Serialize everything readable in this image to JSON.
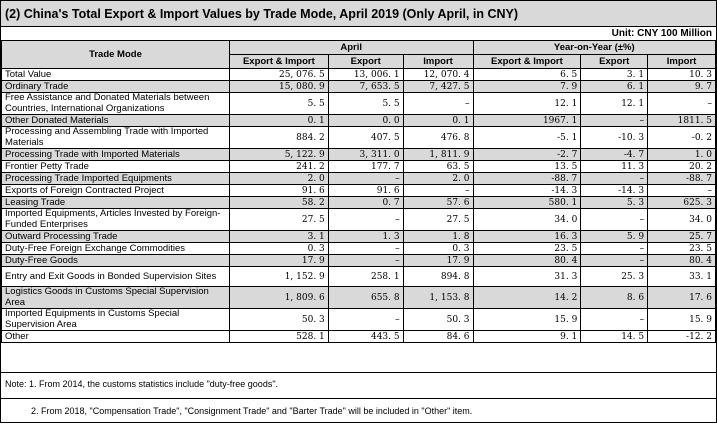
{
  "title": "(2) China's Total Export & Import Values by Trade Mode, April 2019 (Only April, in CNY)",
  "unit": "Unit: CNY 100 Million",
  "headers": {
    "trade_mode": "Trade Mode",
    "april": "April",
    "yoy": "Year-on-Year (±%)",
    "export_import": "Export & Import",
    "export": "Export",
    "import": "Import"
  },
  "rows": [
    {
      "name": "Total Value",
      "ei": "25, 076. 5",
      "ex": "13, 006. 1",
      "im": "12, 070. 4",
      "yei": "6. 5",
      "yex": "3. 1",
      "yim": "10. 3"
    },
    {
      "name": "Ordinary Trade",
      "ei": "15, 080. 9",
      "ex": "7, 653. 5",
      "im": "7, 427. 5",
      "yei": "7. 9",
      "yex": "6. 1",
      "yim": "9. 7"
    },
    {
      "name": "Free Assistance and Donated Materials between Countries, International Organizations",
      "ei": "5. 5",
      "ex": "5. 5",
      "im": "–",
      "yei": "12. 1",
      "yex": "12. 1",
      "yim": "–"
    },
    {
      "name": "Other Donated Materials",
      "ei": "0. 1",
      "ex": "0. 0",
      "im": "0. 1",
      "yei": "1967. 1",
      "yex": "–",
      "yim": "1811. 5"
    },
    {
      "name": "Processing and Assembling Trade with Imported Materials",
      "ei": "884. 2",
      "ex": "407. 5",
      "im": "476. 8",
      "yei": "-5. 1",
      "yex": "-10. 3",
      "yim": "-0. 2"
    },
    {
      "name": "Processing Trade with Imported Materials",
      "ei": "5, 122. 9",
      "ex": "3, 311. 0",
      "im": "1, 811. 9",
      "yei": "-2. 7",
      "yex": "-4. 7",
      "yim": "1. 0"
    },
    {
      "name": "Frontier Petty Trade",
      "ei": "241. 2",
      "ex": "177. 7",
      "im": "63. 5",
      "yei": "13. 5",
      "yex": "11. 3",
      "yim": "20. 2"
    },
    {
      "name": "Processing Trade Imported Equipments",
      "ei": "2. 0",
      "ex": "–",
      "im": "2. 0",
      "yei": "-88. 7",
      "yex": "–",
      "yim": "-88. 7"
    },
    {
      "name": "Exports of Foreign Contracted Project",
      "ei": "91. 6",
      "ex": "91. 6",
      "im": "–",
      "yei": "-14. 3",
      "yex": "-14. 3",
      "yim": "–"
    },
    {
      "name": "Leasing Trade",
      "ei": "58. 2",
      "ex": "0. 7",
      "im": "57. 6",
      "yei": "580. 1",
      "yex": "5. 3",
      "yim": "625. 3"
    },
    {
      "name": "Imported Equipments, Articles Invested by Foreign-Funded Enterprises",
      "ei": "27. 5",
      "ex": "–",
      "im": "27. 5",
      "yei": "34. 0",
      "yex": "–",
      "yim": "34. 0"
    },
    {
      "name": "Outward Processing Trade",
      "ei": "3. 1",
      "ex": "1. 3",
      "im": "1. 8",
      "yei": "16. 3",
      "yex": "5. 9",
      "yim": "25. 7"
    },
    {
      "name": "Duty-Free Foreign Exchange Commodities",
      "ei": "0. 3",
      "ex": "–",
      "im": "0. 3",
      "yei": "23. 5",
      "yex": "–",
      "yim": "23. 5"
    },
    {
      "name": "Duty-Free Goods",
      "ei": "17. 9",
      "ex": "–",
      "im": "17. 9",
      "yei": "80. 4",
      "yex": "–",
      "yim": "80. 4"
    },
    {
      "name": "Entry and Exit Goods in Bonded Supervision Sites",
      "ei": "1, 152. 9",
      "ex": "258. 1",
      "im": "894. 8",
      "yei": "31. 3",
      "yex": "25. 3",
      "yim": "33. 1"
    },
    {
      "name": "Logistics Goods in Customs Special Supervision Area",
      "ei": "1, 809. 6",
      "ex": "655. 8",
      "im": "1, 153. 8",
      "yei": "14. 2",
      "yex": "8. 6",
      "yim": "17. 6"
    },
    {
      "name": "Imported Equipments in Customs Special Supervision Area",
      "ei": "50. 3",
      "ex": "–",
      "im": "50. 3",
      "yei": "15. 9",
      "yex": "–",
      "yim": "15. 9"
    },
    {
      "name": "Other",
      "ei": "528. 1",
      "ex": "443. 5",
      "im": "84. 6",
      "yei": "9. 1",
      "yex": "14. 5",
      "yim": "-12. 2"
    }
  ],
  "notes": [
    "Note: 1. From 2014, the customs statistics include \"duty-free goods\".",
    "2. From 2018, \"Compensation Trade\", \"Consignment Trade\" and \"Barter Trade\" will be included in \"Other\" item."
  ]
}
